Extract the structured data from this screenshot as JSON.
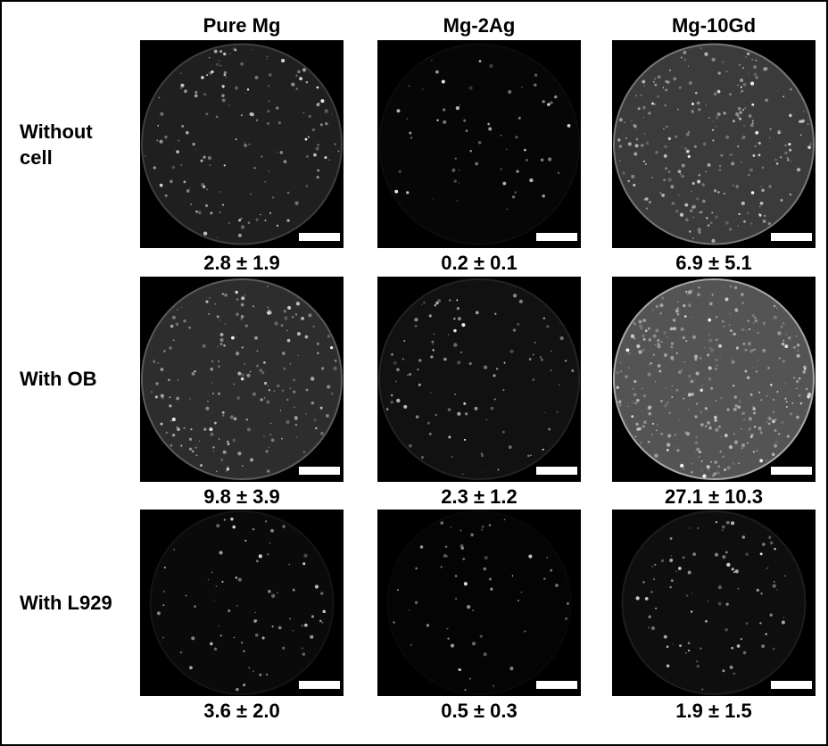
{
  "columns": [
    "Pure Mg",
    "Mg-2Ag",
    "Mg-10Gd"
  ],
  "rows": [
    {
      "label": "Without cell",
      "values": [
        "2.8 ± 1.9",
        "0.2 ± 0.1",
        "6.9 ± 5.1"
      ]
    },
    {
      "label": "With OB",
      "values": [
        "9.8 ± 3.9",
        "2.3 ± 1.2",
        "27.1 ± 10.3"
      ]
    },
    {
      "label": "With L929",
      "values": [
        "3.6 ± 2.0",
        "0.5 ± 0.3",
        "1.9 ± 1.5"
      ]
    }
  ]
}
